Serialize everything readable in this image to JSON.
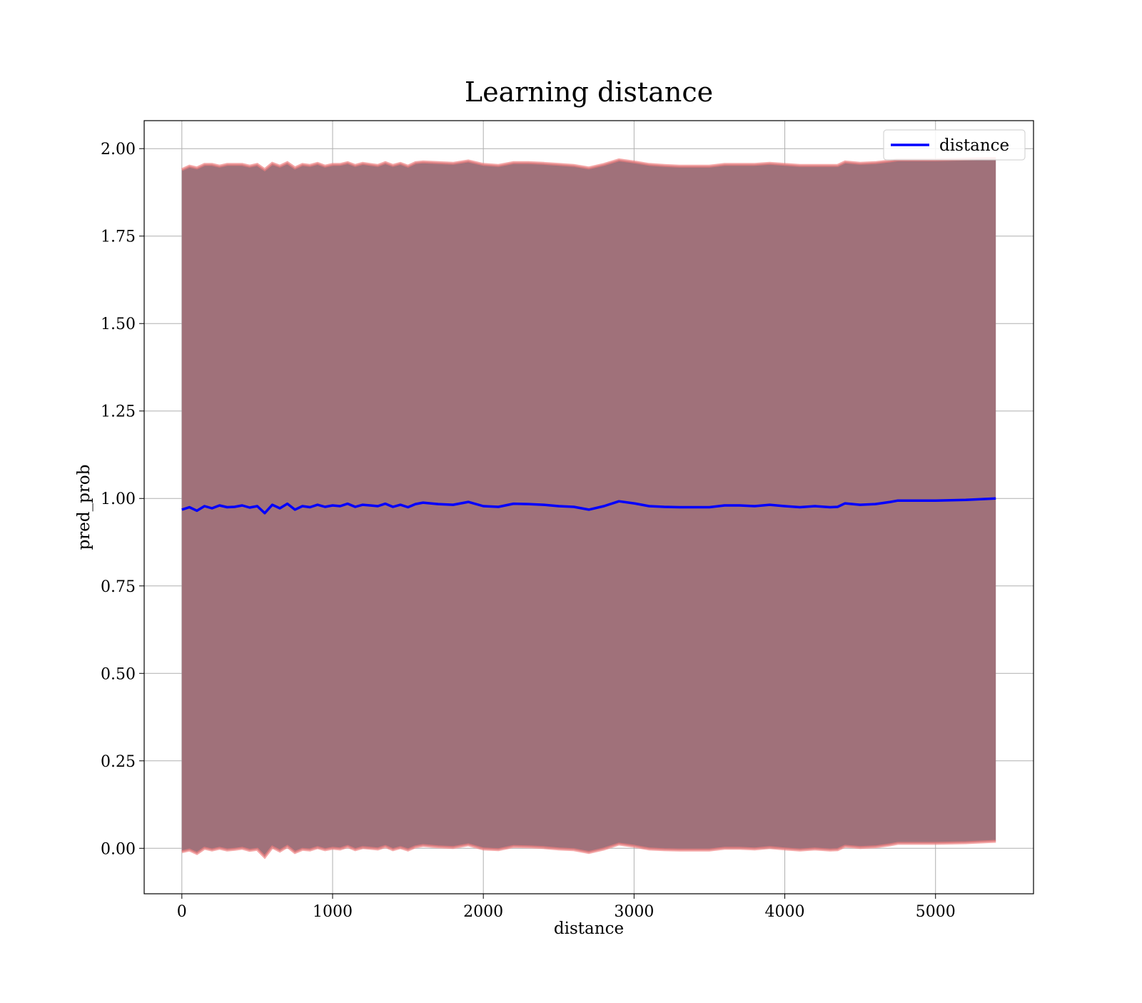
{
  "chart_data": {
    "type": "line",
    "title": "Learning distance",
    "xlabel": "distance",
    "ylabel": "pred_prob",
    "xlim": [
      -250,
      5650
    ],
    "ylim": [
      -0.13,
      2.08
    ],
    "xticks": [
      0,
      1000,
      2000,
      3000,
      4000,
      5000
    ],
    "xtick_labels": [
      "0",
      "1000",
      "2000",
      "3000",
      "4000",
      "5000"
    ],
    "yticks": [
      0.0,
      0.25,
      0.5,
      0.75,
      1.0,
      1.25,
      1.5,
      1.75,
      2.0
    ],
    "ytick_labels": [
      "0.00",
      "0.25",
      "0.50",
      "0.75",
      "1.00",
      "1.25",
      "1.50",
      "1.75",
      "2.00"
    ],
    "grid": true,
    "legend": {
      "position": "top-right",
      "entries": [
        "distance"
      ]
    },
    "colors": {
      "line": "#0000ff",
      "band_fill": "#a0717a",
      "band_edge": "#f08080",
      "grid": "#b0b0b0"
    },
    "series": [
      {
        "name": "distance",
        "x": [
          0,
          50,
          100,
          150,
          200,
          250,
          300,
          350,
          400,
          450,
          500,
          550,
          600,
          650,
          700,
          750,
          800,
          850,
          900,
          950,
          1000,
          1050,
          1100,
          1150,
          1200,
          1250,
          1300,
          1350,
          1400,
          1450,
          1500,
          1550,
          1600,
          1700,
          1800,
          1900,
          2000,
          2100,
          2200,
          2300,
          2400,
          2500,
          2600,
          2700,
          2800,
          2900,
          3000,
          3100,
          3200,
          3300,
          3400,
          3500,
          3600,
          3700,
          3800,
          3900,
          4000,
          4100,
          4200,
          4300,
          4350,
          4400,
          4500,
          4600,
          4700,
          4750,
          4800,
          5000,
          5200,
          5400
        ],
        "y": [
          0.968,
          0.975,
          0.965,
          0.978,
          0.972,
          0.98,
          0.975,
          0.976,
          0.98,
          0.974,
          0.978,
          0.958,
          0.982,
          0.972,
          0.985,
          0.968,
          0.978,
          0.975,
          0.982,
          0.976,
          0.98,
          0.978,
          0.985,
          0.976,
          0.982,
          0.98,
          0.978,
          0.985,
          0.976,
          0.982,
          0.975,
          0.984,
          0.988,
          0.984,
          0.982,
          0.99,
          0.978,
          0.976,
          0.985,
          0.984,
          0.982,
          0.978,
          0.976,
          0.968,
          0.978,
          0.992,
          0.986,
          0.978,
          0.976,
          0.975,
          0.975,
          0.975,
          0.98,
          0.98,
          0.978,
          0.982,
          0.978,
          0.975,
          0.978,
          0.975,
          0.976,
          0.986,
          0.982,
          0.984,
          0.99,
          0.994,
          0.994,
          0.994,
          0.996,
          1.0
        ]
      }
    ],
    "band": {
      "x": [
        0,
        50,
        100,
        150,
        200,
        250,
        300,
        350,
        400,
        450,
        500,
        550,
        600,
        650,
        700,
        750,
        800,
        850,
        900,
        950,
        1000,
        1050,
        1100,
        1150,
        1200,
        1250,
        1300,
        1350,
        1400,
        1450,
        1500,
        1550,
        1600,
        1700,
        1800,
        1900,
        2000,
        2100,
        2200,
        2300,
        2400,
        2500,
        2600,
        2700,
        2800,
        2900,
        3000,
        3100,
        3200,
        3300,
        3400,
        3500,
        3600,
        3700,
        3800,
        3900,
        4000,
        4100,
        4200,
        4300,
        4350,
        4400,
        4500,
        4600,
        4700,
        4750,
        4800,
        5000,
        5200,
        5400
      ],
      "upper": [
        1.94,
        1.95,
        1.945,
        1.955,
        1.955,
        1.95,
        1.955,
        1.955,
        1.955,
        1.95,
        1.955,
        1.94,
        1.958,
        1.95,
        1.96,
        1.945,
        1.955,
        1.952,
        1.958,
        1.95,
        1.955,
        1.955,
        1.96,
        1.952,
        1.958,
        1.955,
        1.952,
        1.96,
        1.952,
        1.958,
        1.95,
        1.96,
        1.962,
        1.96,
        1.958,
        1.965,
        1.955,
        1.952,
        1.96,
        1.96,
        1.958,
        1.955,
        1.952,
        1.945,
        1.955,
        1.968,
        1.962,
        1.955,
        1.952,
        1.95,
        1.95,
        1.95,
        1.955,
        1.955,
        1.955,
        1.958,
        1.955,
        1.952,
        1.952,
        1.952,
        1.952,
        1.962,
        1.958,
        1.96,
        1.965,
        1.968,
        1.968,
        1.968,
        1.97,
        1.972
      ],
      "lower": [
        -0.01,
        -0.005,
        -0.015,
        0.0,
        -0.005,
        0.0,
        -0.005,
        -0.003,
        0.0,
        -0.006,
        -0.003,
        -0.025,
        0.003,
        -0.008,
        0.005,
        -0.012,
        -0.003,
        -0.005,
        0.002,
        -0.004,
        0.0,
        -0.002,
        0.005,
        -0.004,
        0.002,
        0.0,
        -0.002,
        0.005,
        -0.004,
        0.002,
        -0.005,
        0.004,
        0.008,
        0.004,
        0.002,
        0.01,
        -0.002,
        -0.004,
        0.005,
        0.004,
        0.002,
        -0.002,
        -0.004,
        -0.012,
        -0.002,
        0.012,
        0.006,
        -0.002,
        -0.004,
        -0.005,
        -0.005,
        -0.005,
        0.0,
        0.0,
        -0.002,
        0.002,
        -0.002,
        -0.005,
        -0.002,
        -0.005,
        -0.004,
        0.006,
        0.002,
        0.004,
        0.01,
        0.014,
        0.014,
        0.014,
        0.016,
        0.02
      ]
    }
  }
}
